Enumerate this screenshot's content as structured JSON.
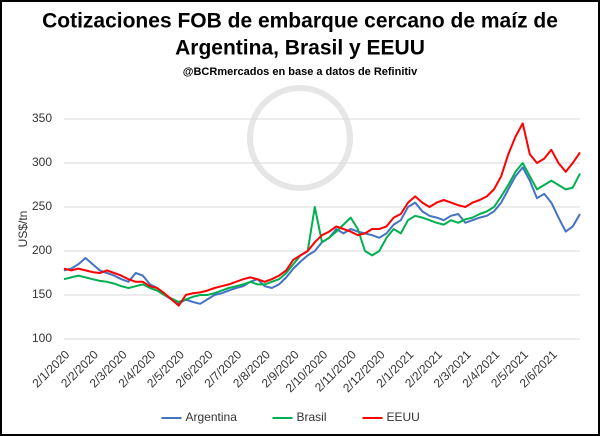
{
  "chart_data": {
    "type": "line",
    "title": [
      "Cotizaciones FOB de embarque cercano de maíz de",
      "Argentina, Brasil y EEUU"
    ],
    "subtitle": "@BCRmercados en base a datos de Refinitiv",
    "y_label": "US$/tn",
    "categories": [
      "2/1/2020",
      null,
      null,
      null,
      "2/2/2020",
      null,
      null,
      null,
      "2/3/2020",
      null,
      null,
      null,
      "2/4/2020",
      null,
      null,
      null,
      "2/5/2020",
      null,
      null,
      null,
      "2/6/2020",
      null,
      null,
      null,
      "2/7/2020",
      null,
      null,
      null,
      "2/8/2020",
      null,
      null,
      null,
      "2/9/2020",
      null,
      null,
      null,
      "2/10/2020",
      null,
      null,
      null,
      "2/11/2020",
      null,
      null,
      null,
      "2/12/2020",
      null,
      null,
      null,
      "2/1/2021",
      null,
      null,
      null,
      "2/2/2021",
      null,
      null,
      null,
      "2/3/2021",
      null,
      null,
      null,
      "2/4/2021",
      null,
      null,
      null,
      "2/5/2021",
      null,
      null,
      null,
      "2/6/2021",
      null,
      null,
      null,
      null
    ],
    "series": [
      {
        "name": "Argentina",
        "color": "#4472c4",
        "values": [
          178,
          180,
          185,
          192,
          185,
          178,
          175,
          172,
          168,
          165,
          175,
          172,
          162,
          158,
          150,
          145,
          140,
          145,
          142,
          140,
          145,
          150,
          152,
          155,
          158,
          160,
          165,
          168,
          160,
          158,
          162,
          170,
          180,
          188,
          195,
          200,
          210,
          215,
          225,
          220,
          225,
          222,
          220,
          218,
          215,
          220,
          230,
          235,
          250,
          255,
          245,
          240,
          238,
          235,
          240,
          242,
          232,
          235,
          238,
          240,
          245,
          255,
          270,
          285,
          295,
          280,
          260,
          265,
          255,
          238,
          222,
          228,
          242
        ]
      },
      {
        "name": "Brasil",
        "color": "#00b050",
        "values": [
          168,
          170,
          172,
          170,
          168,
          166,
          165,
          163,
          160,
          158,
          160,
          162,
          158,
          155,
          150,
          146,
          142,
          145,
          148,
          150,
          150,
          152,
          155,
          158,
          160,
          162,
          165,
          162,
          162,
          165,
          168,
          175,
          185,
          195,
          200,
          250,
          210,
          215,
          222,
          230,
          238,
          225,
          200,
          195,
          200,
          215,
          225,
          220,
          235,
          240,
          238,
          235,
          232,
          230,
          235,
          232,
          236,
          238,
          242,
          245,
          250,
          262,
          275,
          290,
          300,
          285,
          270,
          275,
          280,
          275,
          270,
          272,
          288
        ]
      },
      {
        "name": "EEUU",
        "color": "#ff0000",
        "values": [
          180,
          178,
          180,
          178,
          176,
          175,
          178,
          175,
          172,
          168,
          165,
          165,
          160,
          158,
          152,
          145,
          138,
          150,
          152,
          153,
          155,
          158,
          160,
          162,
          165,
          168,
          170,
          168,
          165,
          168,
          172,
          178,
          190,
          195,
          200,
          210,
          218,
          222,
          228,
          225,
          222,
          218,
          220,
          225,
          225,
          228,
          238,
          242,
          255,
          262,
          255,
          250,
          255,
          258,
          255,
          252,
          250,
          255,
          258,
          262,
          270,
          285,
          310,
          330,
          345,
          310,
          300,
          305,
          315,
          300,
          290,
          300,
          312
        ]
      }
    ],
    "ylim": [
      100,
      350
    ],
    "yticks": [
      100,
      150,
      200,
      250,
      300,
      350
    ],
    "grid": true,
    "legend": "bottom"
  }
}
